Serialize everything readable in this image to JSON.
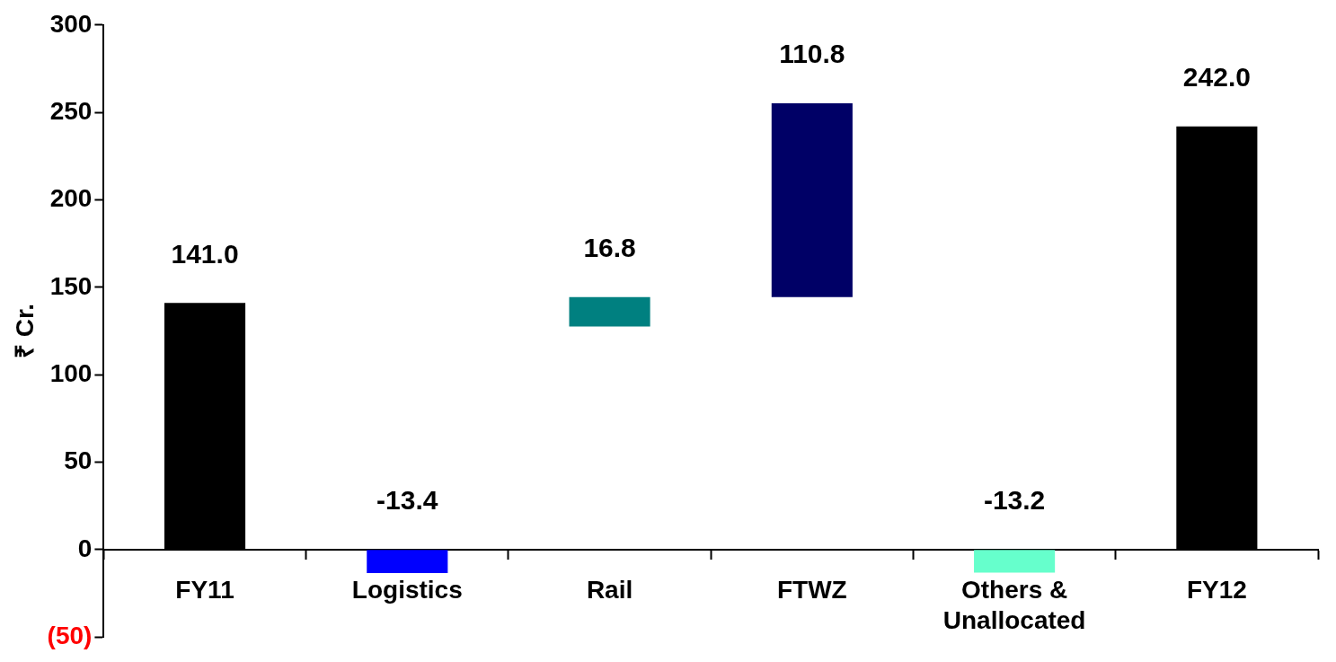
{
  "chart_data": {
    "type": "bar",
    "ylabel": "₹ Cr.",
    "categories": [
      "FY11",
      "Logistics",
      "Rail",
      "FTWZ",
      "Others & Unallocated",
      "FY12"
    ],
    "values": [
      141.0,
      -13.4,
      16.8,
      110.8,
      -13.2,
      242.0
    ],
    "base": [
      0,
      0,
      127.6,
      144.4,
      0,
      0
    ],
    "colors": [
      "#000000",
      "#0000ff",
      "#008080",
      "#000066",
      "#66ffcc",
      "#000000"
    ],
    "value_labels": [
      "141.0",
      "-13.4",
      "16.8",
      "110.8",
      "-13.2",
      "242.0"
    ],
    "ylim": [
      -50,
      300
    ],
    "yticks": [
      {
        "value": -50,
        "label": "(50)"
      },
      0,
      50,
      100,
      150,
      200,
      250,
      300
    ],
    "grid": false,
    "legend": false
  }
}
